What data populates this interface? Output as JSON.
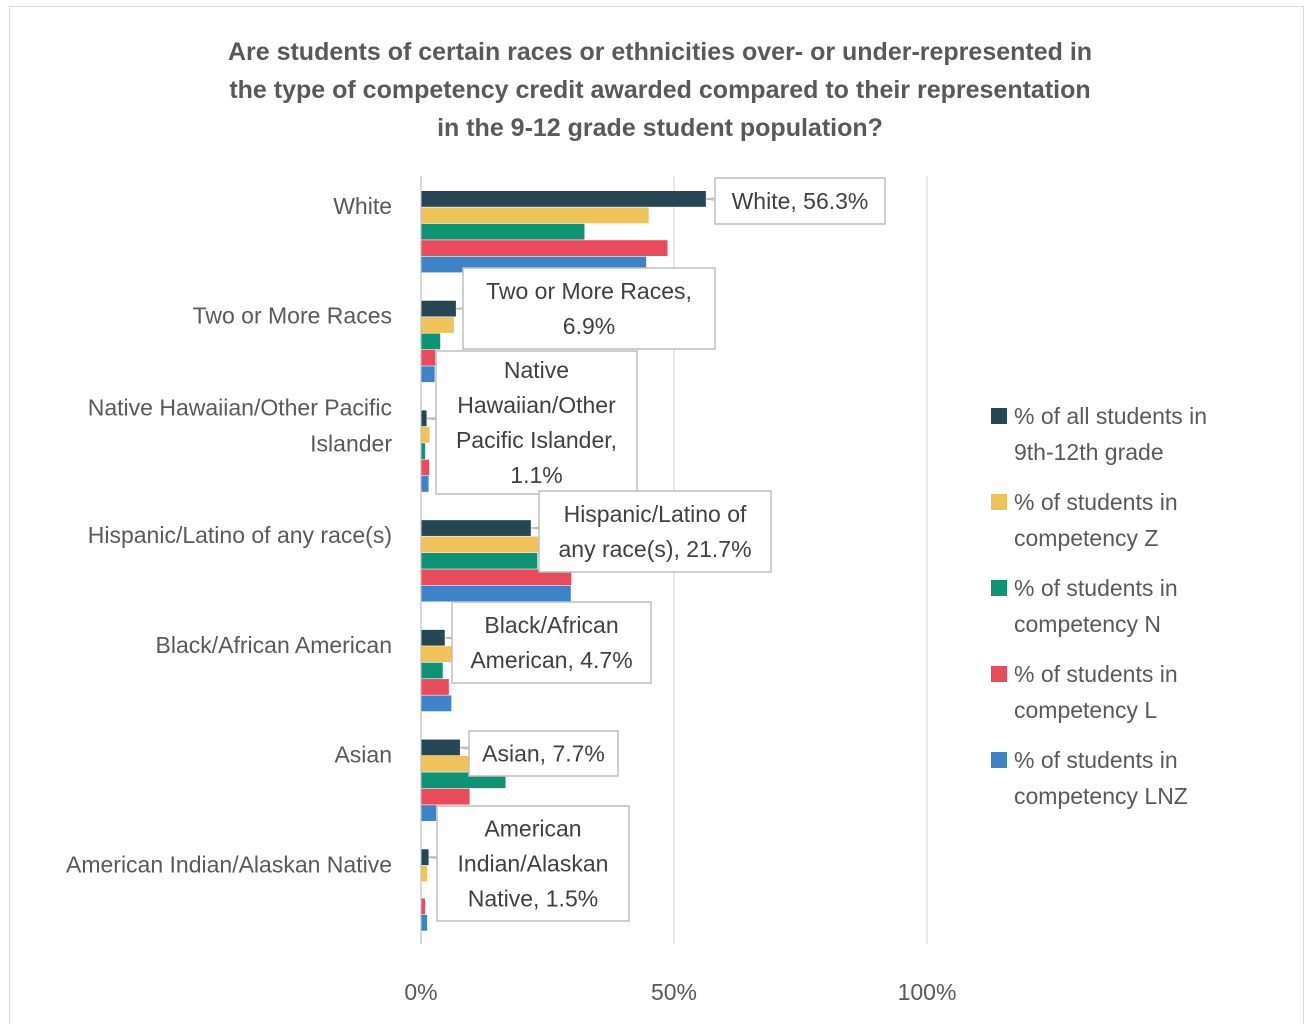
{
  "chart_data": {
    "type": "bar",
    "orientation": "horizontal",
    "title": "Are students of certain races or ethnicities over- or under-represented in the type of competency credit awarded compared to their representation in the 9-12 grade student population?",
    "title_lines": [
      "Are students of certain races or ethnicities over- or under-represented in",
      "the type of competency credit awarded compared to their representation",
      "in the 9-12 grade student population?"
    ],
    "categories": [
      "White",
      "Two or More Races",
      "Native Hawaiian/Other Pacific Islander",
      "Hispanic/Latino of any race(s)",
      "Black/African American",
      "Asian",
      "American Indian/Alaskan Native"
    ],
    "category_label_lines": [
      [
        "White"
      ],
      [
        "Two or More Races"
      ],
      [
        "Native Hawaiian/Other Pacific",
        "Islander"
      ],
      [
        "Hispanic/Latino of any race(s)"
      ],
      [
        "Black/African American"
      ],
      [
        "Asian"
      ],
      [
        "American Indian/Alaskan Native"
      ]
    ],
    "series": [
      {
        "name": "% of all students in 9th-12th grade",
        "legend_lines": [
          "% of all students in",
          "9th-12th grade"
        ],
        "color": "#264653",
        "values": [
          56.3,
          6.9,
          1.1,
          21.7,
          4.7,
          7.7,
          1.5
        ]
      },
      {
        "name": "% of students in competency Z",
        "legend_lines": [
          "% of students in",
          "competency Z"
        ],
        "color": "#F0C35A",
        "values": [
          45,
          6.5,
          1.7,
          23.5,
          6.2,
          9.5,
          1.2
        ]
      },
      {
        "name": "% of students in competency N",
        "legend_lines": [
          "% of students in",
          "competency N"
        ],
        "color": "#0E9375",
        "values": [
          32.3,
          3.8,
          0.8,
          23,
          4.3,
          16.7,
          0
        ]
      },
      {
        "name": "% of students in competency L",
        "legend_lines": [
          "% of students in",
          "competency L"
        ],
        "color": "#E94A5C",
        "values": [
          48.7,
          2.8,
          1.6,
          29.7,
          5.5,
          9.6,
          0.8
        ]
      },
      {
        "name": "% of students in competency LNZ",
        "legend_lines": [
          "% of students in",
          "competency LNZ"
        ],
        "color": "#3C83C8",
        "values": [
          44.5,
          2.7,
          1.5,
          29.6,
          6,
          3,
          1.2
        ]
      }
    ],
    "data_labels": [
      [
        "White, 56.3%"
      ],
      [
        "Two or More Races,",
        "6.9%"
      ],
      [
        "Native",
        "Hawaiian/Other",
        "Pacific Islander,",
        "1.1%"
      ],
      [
        "Hispanic/Latino of",
        "any race(s), 21.7%"
      ],
      [
        "Black/African",
        "American, 4.7%"
      ],
      [
        "Asian, 7.7%"
      ],
      [
        "American",
        "Indian/Alaskan",
        "Native, 1.5%"
      ]
    ],
    "xlim": [
      0,
      100
    ],
    "x_ticks": [
      0,
      50,
      100
    ],
    "x_tick_labels": [
      "0%",
      "50%",
      "100%"
    ],
    "xlabel": "",
    "ylabel": "",
    "grid": true,
    "legend_position": "right"
  }
}
